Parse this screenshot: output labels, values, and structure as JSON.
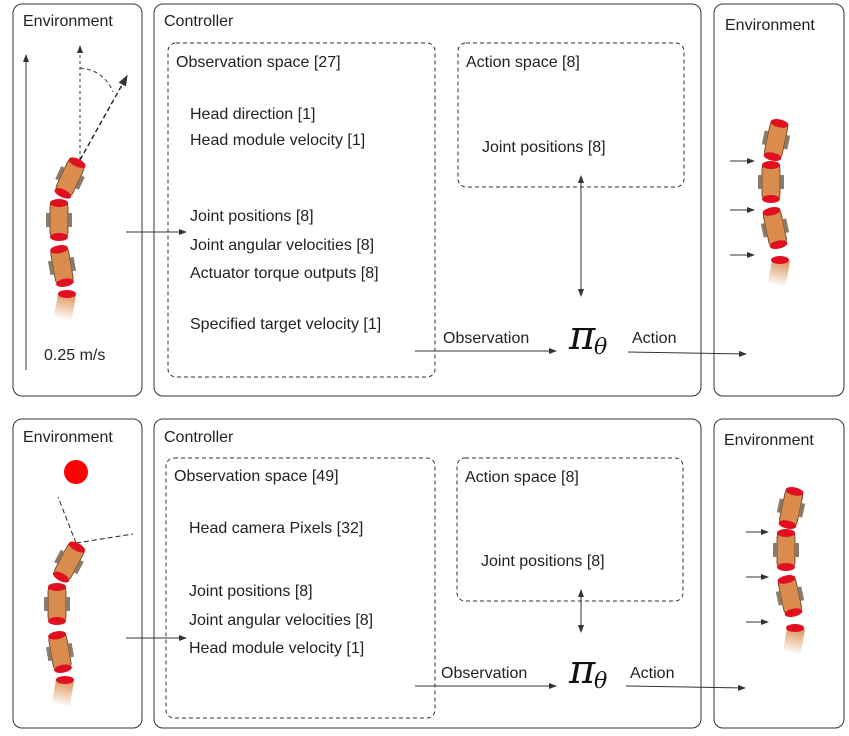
{
  "top": {
    "env_left": "Environment",
    "env_right": "Environment",
    "controller": "Controller",
    "observation_space": "Observation space [27]",
    "obs_items": [
      "Head direction  [1]",
      "Head module velocity [1]",
      "Joint positions [8]",
      "Joint angular velocities [8]",
      "Actuator torque outputs [8]",
      "Specified target velocity [1]"
    ],
    "action_space": "Action space [8]",
    "action_item": "Joint positions [8]",
    "observation_label": "Observation",
    "action_label": "Action",
    "policy_symbol": "π",
    "policy_subscript": "θ",
    "speed_label": "0.25 m/s"
  },
  "bottom": {
    "env_left": "Environment",
    "env_right": "Environment",
    "controller": "Controller",
    "observation_space": "Observation space [49]",
    "obs_items": [
      "Head camera Pixels  [32]",
      "Joint positions [8]",
      "Joint angular velocities [8]",
      "Head module velocity [1]"
    ],
    "action_space": "Action space [8]",
    "action_item": "Joint positions [8]",
    "observation_label": "Observation",
    "action_label": "Action",
    "policy_symbol": "π",
    "policy_subscript": "θ"
  },
  "colors": {
    "module_body": "#d98c4e",
    "module_cap": "#e01020",
    "wheel": "#8a7a6a",
    "target": "#ff0000"
  }
}
